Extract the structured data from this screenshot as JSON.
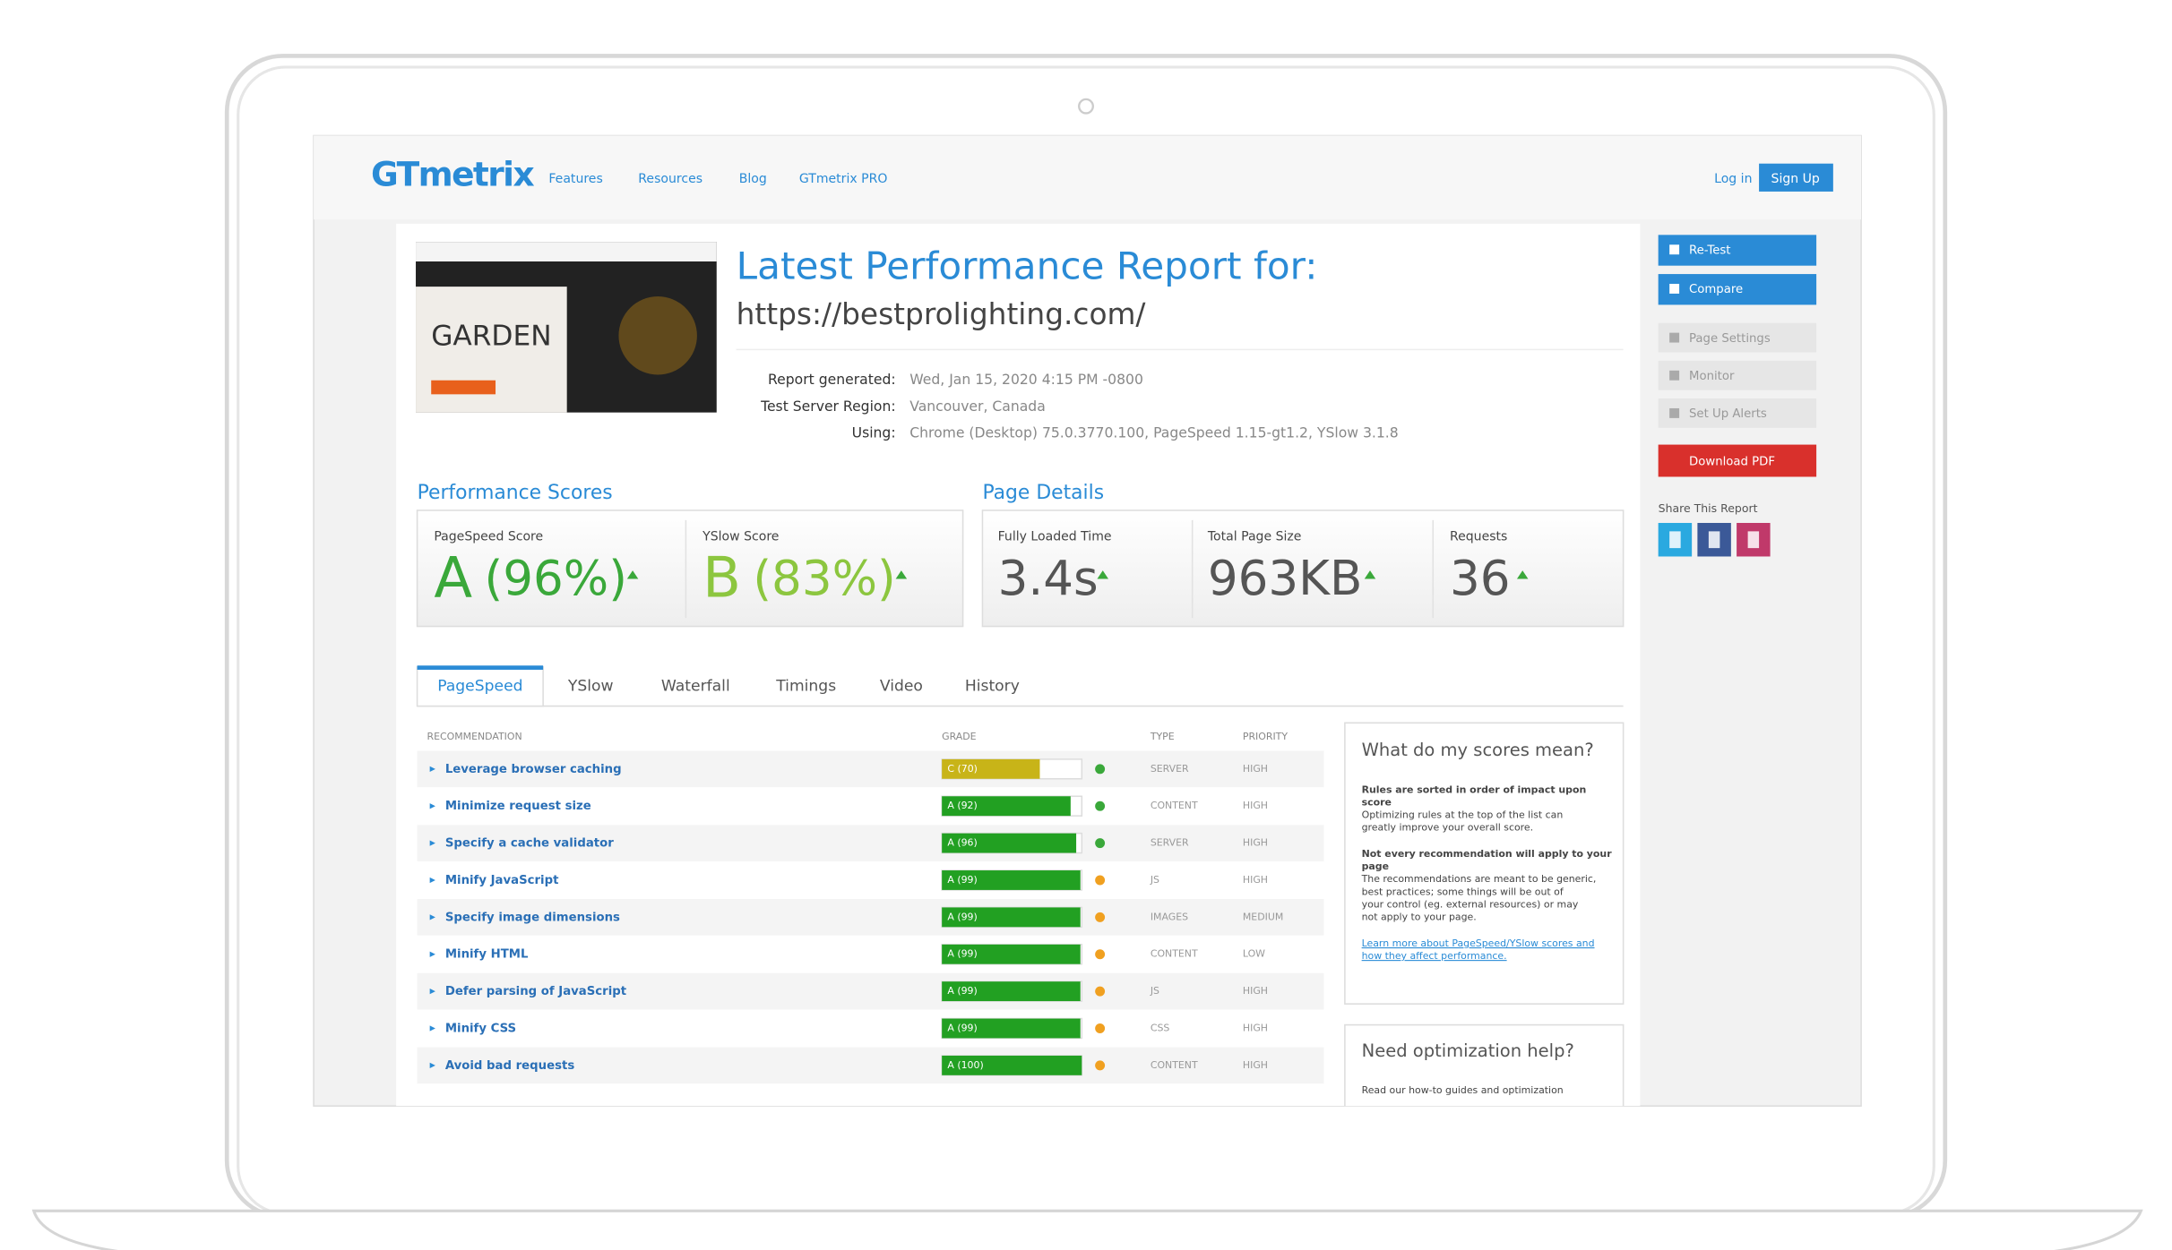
{
  "header": {
    "logo": "GTmetrix",
    "nav": [
      "Features",
      "Resources",
      "Blog",
      "GTmetrix PRO"
    ],
    "login": "Log in",
    "signup": "Sign Up"
  },
  "report": {
    "thumbnail_text": "GARDEN",
    "title": "Latest Performance Report for:",
    "url": "https://bestprolighting.com/",
    "meta": [
      {
        "label": "Report generated:",
        "value": "Wed, Jan 15, 2020 4:15 PM -0800"
      },
      {
        "label": "Test Server Region:",
        "value": "Vancouver, Canada"
      },
      {
        "label": "Using:",
        "value": "Chrome (Desktop) 75.0.3770.100, PageSpeed 1.15-gt1.2, YSlow 3.1.8"
      }
    ]
  },
  "performance": {
    "heading": "Performance Scores",
    "scores": [
      {
        "label": "PageSpeed Score",
        "grade": "A",
        "value": "(96%)"
      },
      {
        "label": "YSlow Score",
        "grade": "B",
        "value": "(83%)"
      }
    ]
  },
  "page_details": {
    "heading": "Page Details",
    "items": [
      {
        "label": "Fully Loaded Time",
        "value": "3.4s"
      },
      {
        "label": "Total Page Size",
        "value": "963KB"
      },
      {
        "label": "Requests",
        "value": "36"
      }
    ]
  },
  "tabs": [
    "PageSpeed",
    "YSlow",
    "Waterfall",
    "Timings",
    "Video",
    "History"
  ],
  "table": {
    "headers": [
      "RECOMMENDATION",
      "GRADE",
      "TYPE",
      "PRIORITY"
    ],
    "rows": [
      {
        "name": "Leverage browser caching",
        "grade": "C (70)",
        "score": 70,
        "type": "SERVER",
        "priority": "HIGH"
      },
      {
        "name": "Minimize request size",
        "grade": "A (92)",
        "score": 92,
        "type": "CONTENT",
        "priority": "HIGH"
      },
      {
        "name": "Specify a cache validator",
        "grade": "A (96)",
        "score": 96,
        "type": "SERVER",
        "priority": "HIGH"
      },
      {
        "name": "Minify JavaScript",
        "grade": "A (99)",
        "score": 99,
        "type": "JS",
        "priority": "HIGH"
      },
      {
        "name": "Specify image dimensions",
        "grade": "A (99)",
        "score": 99,
        "type": "IMAGES",
        "priority": "MEDIUM"
      },
      {
        "name": "Minify HTML",
        "grade": "A (99)",
        "score": 99,
        "type": "CONTENT",
        "priority": "LOW"
      },
      {
        "name": "Defer parsing of JavaScript",
        "grade": "A (99)",
        "score": 99,
        "type": "JS",
        "priority": "HIGH"
      },
      {
        "name": "Minify CSS",
        "grade": "A (99)",
        "score": 99,
        "type": "CSS",
        "priority": "HIGH"
      },
      {
        "name": "Avoid bad requests",
        "grade": "A (100)",
        "score": 100,
        "type": "CONTENT",
        "priority": "HIGH"
      }
    ]
  },
  "info": {
    "heading": "What do my scores mean?",
    "paragraphs": [
      "Rules are sorted in order of impact upon score",
      "Optimizing rules at the top of the list can greatly improve your overall score.",
      "Not every recommendation will apply to your page",
      "The recommendations are meant to be generic, best practices; some things will be out of your control (eg. external resources) or may not apply to your page."
    ],
    "link": "Learn more about PageSpeed/YSlow scores and how they affect performance."
  },
  "help": {
    "heading": "Need optimization help?",
    "text": "Read our how-to guides and optimization"
  },
  "sidebar": {
    "primary": [
      "Re-Test",
      "Compare"
    ],
    "secondary": [
      "Page Settings",
      "Monitor",
      "Set Up Alerts"
    ],
    "pdf": "Download PDF",
    "share": "Share This Report"
  }
}
